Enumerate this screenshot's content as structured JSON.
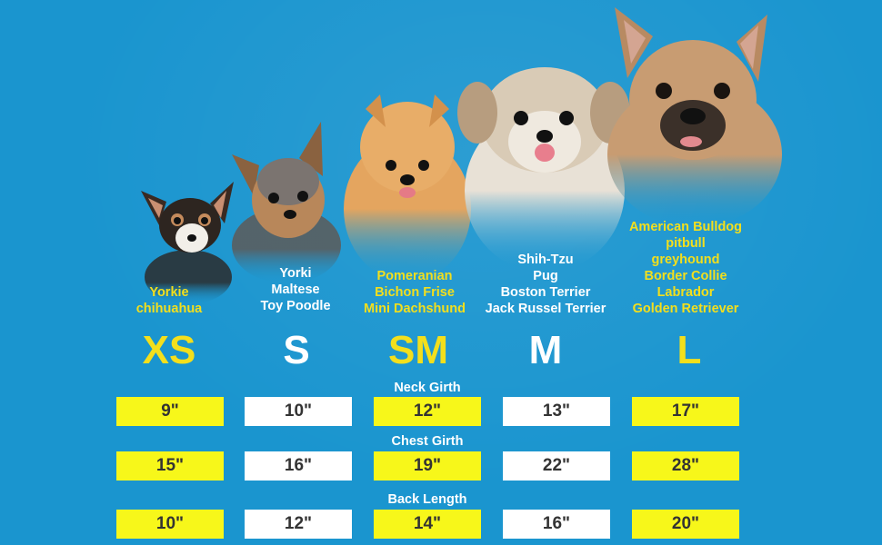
{
  "sizes": [
    {
      "label": "XS",
      "breeds": [
        "Yorkie",
        "chihuahua"
      ],
      "neck": "9\"",
      "chest": "15\"",
      "back": "10\""
    },
    {
      "label": "S",
      "breeds": [
        "Yorki",
        "Maltese",
        "Toy Poodle"
      ],
      "neck": "10\"",
      "chest": "16\"",
      "back": "12\""
    },
    {
      "label": "SM",
      "breeds": [
        "Pomeranian",
        "Bichon Frise",
        "Mini Dachshund"
      ],
      "neck": "12\"",
      "chest": "19\"",
      "back": "14\""
    },
    {
      "label": "M",
      "breeds": [
        "Shih-Tzu",
        "Pug",
        "Boston Terrier",
        "Jack Russel Terrier"
      ],
      "neck": "13\"",
      "chest": "22\"",
      "back": "16\""
    },
    {
      "label": "L",
      "breeds": [
        "American Bulldog",
        "pitbull",
        "greyhound",
        "Border Collie",
        "Labrador",
        "Golden Retriever"
      ],
      "neck": "17\"",
      "chest": "28\"",
      "back": "20\""
    }
  ],
  "measurements": {
    "neck_title": "Neck Girth",
    "chest_title": "Chest Girth",
    "back_title": "Back Length"
  },
  "colors": {
    "background": "#1a95cf",
    "accent_yellow": "#f3df1c",
    "cell_yellow": "#f7f71a",
    "cell_white": "#ffffff"
  }
}
